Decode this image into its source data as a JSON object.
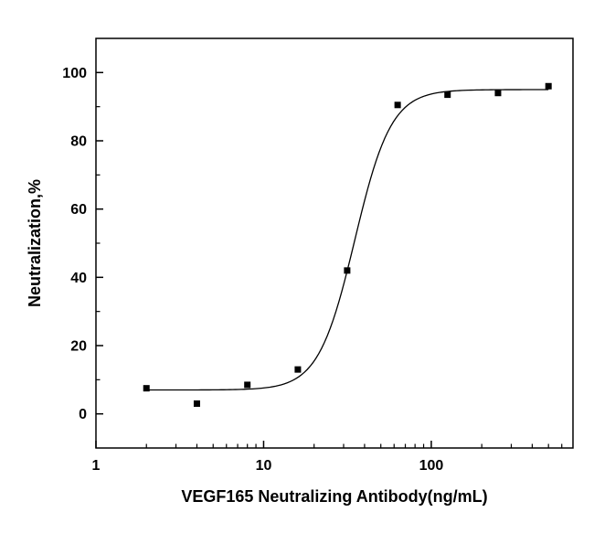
{
  "chart_data": {
    "type": "scatter",
    "title": "",
    "xlabel": "VEGF165 Neutralizing Antibody(ng/mL)",
    "ylabel": "Neutralization,%",
    "x_scale": "log",
    "xlim": [
      1,
      700
    ],
    "ylim": [
      -10,
      110
    ],
    "x_major_ticks": [
      1,
      10,
      100
    ],
    "x_tick_labels": [
      "1",
      "10",
      "100"
    ],
    "y_major_ticks": [
      0,
      20,
      40,
      60,
      80,
      100
    ],
    "y_minor_ticks": [
      10,
      30,
      50,
      70,
      90
    ],
    "grid": false,
    "legend": "none",
    "background": "#ffffff",
    "axis_color": "#000000",
    "series": [
      {
        "name": "neutralization-data",
        "marker": "filled-square",
        "marker_size": 7,
        "color": "#000000",
        "points": [
          {
            "x": 2,
            "y": 7.5
          },
          {
            "x": 4,
            "y": 3
          },
          {
            "x": 8,
            "y": 8.5
          },
          {
            "x": 16,
            "y": 13
          },
          {
            "x": 31.5,
            "y": 42
          },
          {
            "x": 63,
            "y": 90.5
          },
          {
            "x": 125,
            "y": 93.5
          },
          {
            "x": 250,
            "y": 94
          },
          {
            "x": 500,
            "y": 96
          }
        ]
      }
    ],
    "fit_curve": {
      "model": "4-parameter-logistic",
      "bottom": 7,
      "top": 95,
      "ec50": 35,
      "hill": 4,
      "x_start": 2,
      "x_end": 500,
      "color": "#000000"
    }
  }
}
